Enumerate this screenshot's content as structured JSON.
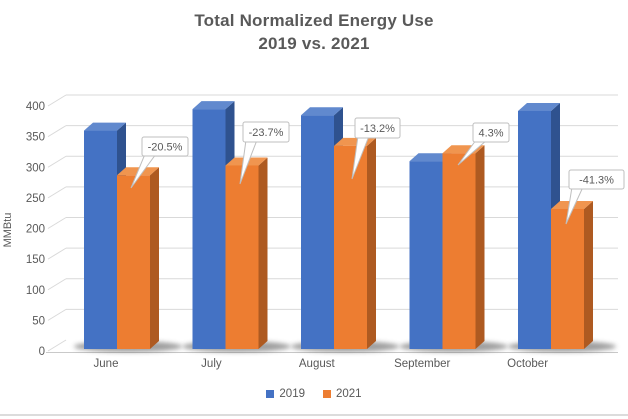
{
  "window": {
    "background": "#ffffff",
    "bottom_rule_color": "#dcdcdc"
  },
  "colors": {
    "text": "#595959",
    "grid": "#D9D9D9",
    "axis_line": "#C9C9C9",
    "callout_border": "#BFBFBF",
    "callout_bg": "#ffffff",
    "shadow": "#404040"
  },
  "chart_data": {
    "type": "bar",
    "style": "3d-clustered-column",
    "title": "Total Normalized Energy Use",
    "subtitle": "2019 vs. 2021",
    "ylabel": "MMBtu",
    "xlabel": "",
    "categories": [
      "June",
      "July",
      "August",
      "September",
      "October"
    ],
    "series": [
      {
        "name": "2019",
        "color": "#4472C4",
        "color_top": "#6189CE",
        "color_side": "#2F528F",
        "values": [
          355,
          390,
          380,
          305,
          387
        ]
      },
      {
        "name": "2021",
        "color": "#ED7D31",
        "color_top": "#F0954F",
        "color_side": "#AE5A21",
        "values": [
          282,
          298,
          330,
          318,
          227
        ]
      }
    ],
    "data_labels": {
      "attached_to": "2021",
      "values": [
        "-20.5%",
        "-23.7%",
        "-13.2%",
        "4.3%",
        "-41.3%"
      ]
    },
    "ylim": [
      0,
      400
    ],
    "ytick_step": 50,
    "yticks": [
      0,
      50,
      100,
      150,
      200,
      250,
      300,
      350,
      400
    ],
    "grid": true,
    "legend_position": "bottom"
  }
}
